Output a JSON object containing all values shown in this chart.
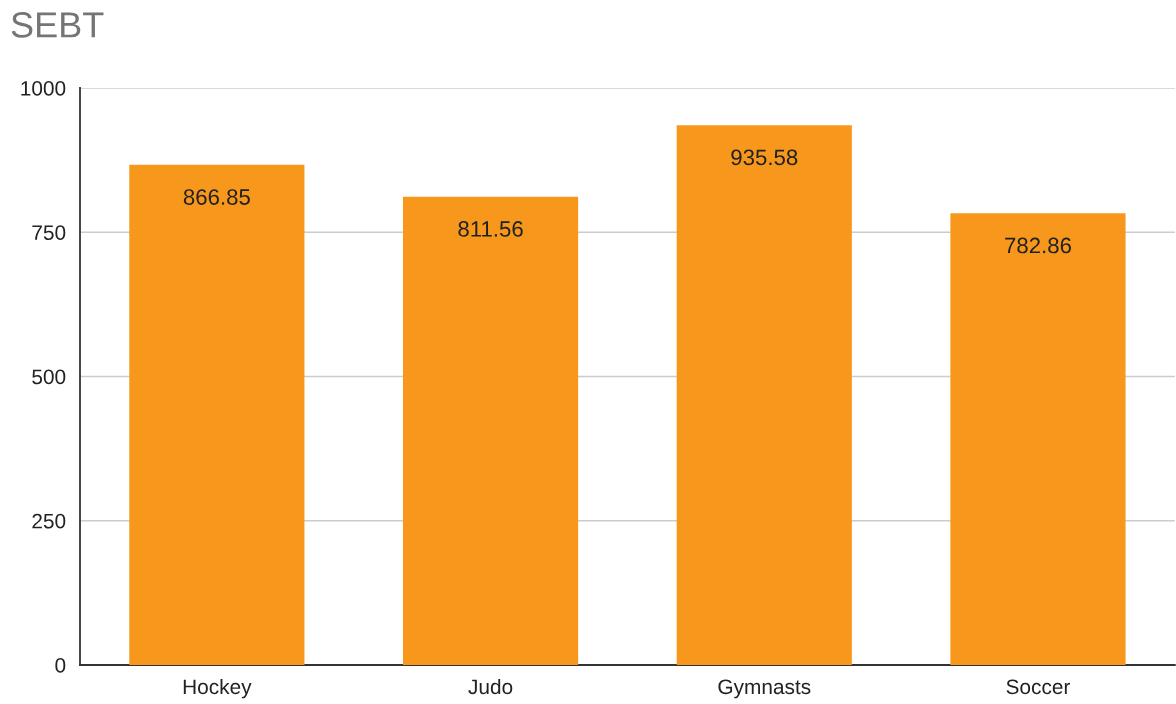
{
  "chart_data": {
    "type": "bar",
    "title": "SEBT",
    "categories": [
      "Hockey",
      "Judo",
      "Gymnasts",
      "Soccer"
    ],
    "values": [
      866.85,
      811.56,
      935.58,
      782.86
    ],
    "color": "#f7981d",
    "ylim": [
      0,
      1000
    ],
    "yticks": [
      0,
      250,
      500,
      750,
      1000
    ],
    "grid": "y",
    "data_labels": true
  }
}
